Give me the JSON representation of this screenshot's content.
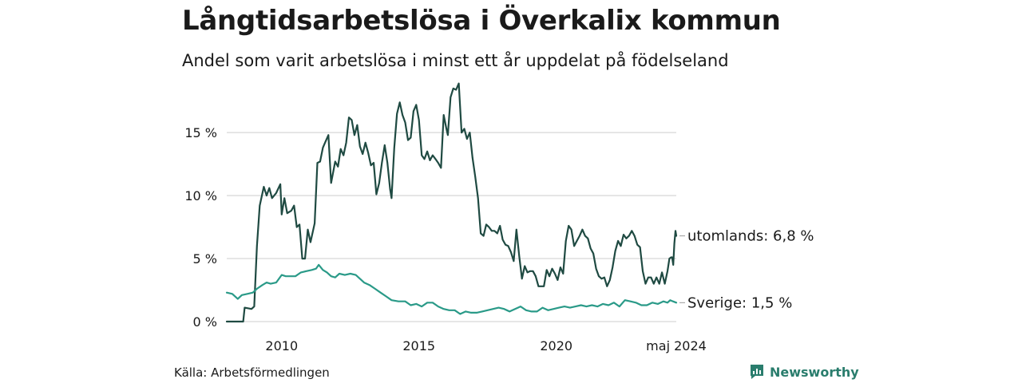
{
  "header": {
    "title": "Långtidsarbetslösa i Överkalix kommun",
    "subtitle": "Andel som varit arbetslösa i minst ett år uppdelat på födelseland"
  },
  "footer": {
    "source": "Källa: Arbetsförmedlingen",
    "brand": "Newsworthy"
  },
  "colors": {
    "utomlands": "#1f4a42",
    "sverige": "#2a9a88",
    "grid": "#dddddd",
    "brand": "#2a7d6d"
  },
  "chart_data": {
    "type": "line",
    "title": "Långtidsarbetslösa i Överkalix kommun",
    "xlabel": "",
    "ylabel": "",
    "ylim": [
      0,
      19
    ],
    "xlim": [
      2008.0,
      2024.37
    ],
    "grid": true,
    "yticks": [
      {
        "value": 0,
        "label": "0 %"
      },
      {
        "value": 5,
        "label": "5 %"
      },
      {
        "value": 10,
        "label": "10 %"
      },
      {
        "value": 15,
        "label": "15 %"
      }
    ],
    "xticks": [
      {
        "value": 2010.0,
        "label": "2010"
      },
      {
        "value": 2015.0,
        "label": "2015"
      },
      {
        "value": 2020.0,
        "label": "2020"
      },
      {
        "value": 2024.37,
        "label": "maj 2024"
      }
    ],
    "series": [
      {
        "name": "utomlands",
        "end_label": "utomlands: 6,8 %",
        "points": [
          [
            2008.0,
            0
          ],
          [
            2008.3,
            0
          ],
          [
            2008.6,
            0
          ],
          [
            2008.65,
            1.1
          ],
          [
            2008.9,
            1.0
          ],
          [
            2009.0,
            1.2
          ],
          [
            2009.1,
            6
          ],
          [
            2009.2,
            9.2
          ],
          [
            2009.35,
            10.7
          ],
          [
            2009.45,
            10.0
          ],
          [
            2009.55,
            10.6
          ],
          [
            2009.65,
            9.8
          ],
          [
            2009.8,
            10.2
          ],
          [
            2009.95,
            10.9
          ],
          [
            2010.0,
            8.5
          ],
          [
            2010.1,
            9.8
          ],
          [
            2010.2,
            8.6
          ],
          [
            2010.35,
            8.8
          ],
          [
            2010.45,
            9.2
          ],
          [
            2010.55,
            7.5
          ],
          [
            2010.65,
            7.7
          ],
          [
            2010.75,
            5.0
          ],
          [
            2010.85,
            5.0
          ],
          [
            2010.95,
            7.3
          ],
          [
            2011.05,
            6.3
          ],
          [
            2011.2,
            7.8
          ],
          [
            2011.3,
            12.6
          ],
          [
            2011.4,
            12.7
          ],
          [
            2011.5,
            13.8
          ],
          [
            2011.6,
            14.3
          ],
          [
            2011.7,
            14.8
          ],
          [
            2011.8,
            11.0
          ],
          [
            2011.95,
            12.7
          ],
          [
            2012.05,
            12.3
          ],
          [
            2012.15,
            13.7
          ],
          [
            2012.25,
            13.2
          ],
          [
            2012.35,
            14.2
          ],
          [
            2012.45,
            16.2
          ],
          [
            2012.55,
            16.0
          ],
          [
            2012.65,
            14.8
          ],
          [
            2012.75,
            15.6
          ],
          [
            2012.85,
            13.9
          ],
          [
            2012.95,
            13.3
          ],
          [
            2013.05,
            14.2
          ],
          [
            2013.15,
            13.4
          ],
          [
            2013.25,
            12.4
          ],
          [
            2013.35,
            12.6
          ],
          [
            2013.45,
            10.1
          ],
          [
            2013.55,
            11.0
          ],
          [
            2013.65,
            12.6
          ],
          [
            2013.75,
            14.0
          ],
          [
            2013.85,
            12.6
          ],
          [
            2013.95,
            10.5
          ],
          [
            2014.0,
            9.8
          ],
          [
            2014.1,
            13.8
          ],
          [
            2014.2,
            16.5
          ],
          [
            2014.3,
            17.4
          ],
          [
            2014.4,
            16.4
          ],
          [
            2014.5,
            15.8
          ],
          [
            2014.6,
            14.4
          ],
          [
            2014.7,
            14.6
          ],
          [
            2014.8,
            16.7
          ],
          [
            2014.9,
            17.2
          ],
          [
            2015.0,
            16.0
          ],
          [
            2015.1,
            13.2
          ],
          [
            2015.2,
            12.9
          ],
          [
            2015.3,
            13.5
          ],
          [
            2015.4,
            12.8
          ],
          [
            2015.5,
            13.2
          ],
          [
            2015.6,
            12.9
          ],
          [
            2015.7,
            12.6
          ],
          [
            2015.8,
            12.2
          ],
          [
            2015.9,
            16.4
          ],
          [
            2016.0,
            15.3
          ],
          [
            2016.05,
            14.8
          ],
          [
            2016.15,
            17.8
          ],
          [
            2016.25,
            18.5
          ],
          [
            2016.35,
            18.4
          ],
          [
            2016.45,
            18.9
          ],
          [
            2016.55,
            15.0
          ],
          [
            2016.65,
            15.3
          ],
          [
            2016.75,
            14.5
          ],
          [
            2016.85,
            15.0
          ],
          [
            2016.95,
            13.0
          ],
          [
            2017.05,
            11.5
          ],
          [
            2017.15,
            9.8
          ],
          [
            2017.25,
            7.0
          ],
          [
            2017.35,
            6.8
          ],
          [
            2017.45,
            7.7
          ],
          [
            2017.55,
            7.5
          ],
          [
            2017.65,
            7.2
          ],
          [
            2017.75,
            7.2
          ],
          [
            2017.85,
            7.0
          ],
          [
            2017.95,
            7.6
          ],
          [
            2018.05,
            6.5
          ],
          [
            2018.15,
            6.1
          ],
          [
            2018.25,
            6.0
          ],
          [
            2018.35,
            5.5
          ],
          [
            2018.45,
            4.8
          ],
          [
            2018.55,
            7.3
          ],
          [
            2018.65,
            5.2
          ],
          [
            2018.75,
            3.4
          ],
          [
            2018.85,
            4.4
          ],
          [
            2018.95,
            3.9
          ],
          [
            2019.05,
            4.0
          ],
          [
            2019.15,
            4.0
          ],
          [
            2019.25,
            3.6
          ],
          [
            2019.35,
            2.8
          ],
          [
            2019.45,
            2.8
          ],
          [
            2019.55,
            2.8
          ],
          [
            2019.65,
            4.1
          ],
          [
            2019.75,
            3.6
          ],
          [
            2019.85,
            4.2
          ],
          [
            2019.95,
            3.8
          ],
          [
            2020.05,
            3.3
          ],
          [
            2020.15,
            4.3
          ],
          [
            2020.25,
            3.8
          ],
          [
            2020.35,
            6.4
          ],
          [
            2020.45,
            7.6
          ],
          [
            2020.55,
            7.3
          ],
          [
            2020.65,
            6.0
          ],
          [
            2020.75,
            6.4
          ],
          [
            2020.85,
            6.8
          ],
          [
            2020.95,
            7.3
          ],
          [
            2021.05,
            6.8
          ],
          [
            2021.15,
            6.6
          ],
          [
            2021.25,
            5.8
          ],
          [
            2021.35,
            5.4
          ],
          [
            2021.45,
            4.2
          ],
          [
            2021.55,
            3.6
          ],
          [
            2021.65,
            3.4
          ],
          [
            2021.75,
            3.5
          ],
          [
            2021.85,
            2.8
          ],
          [
            2021.95,
            3.3
          ],
          [
            2022.05,
            4.3
          ],
          [
            2022.15,
            5.6
          ],
          [
            2022.25,
            6.4
          ],
          [
            2022.35,
            6.0
          ],
          [
            2022.45,
            6.9
          ],
          [
            2022.55,
            6.6
          ],
          [
            2022.65,
            6.8
          ],
          [
            2022.75,
            7.2
          ],
          [
            2022.85,
            6.8
          ],
          [
            2022.95,
            6.1
          ],
          [
            2023.05,
            5.9
          ],
          [
            2023.15,
            4.0
          ],
          [
            2023.25,
            3.0
          ],
          [
            2023.35,
            3.5
          ],
          [
            2023.45,
            3.5
          ],
          [
            2023.55,
            3.0
          ],
          [
            2023.65,
            3.5
          ],
          [
            2023.75,
            3.0
          ],
          [
            2023.85,
            3.9
          ],
          [
            2023.95,
            3.0
          ],
          [
            2024.05,
            4.0
          ],
          [
            2024.12,
            5.0
          ],
          [
            2024.18,
            5.1
          ],
          [
            2024.22,
            5.1
          ],
          [
            2024.26,
            4.5
          ],
          [
            2024.3,
            6.2
          ],
          [
            2024.34,
            7.2
          ],
          [
            2024.37,
            6.8
          ]
        ]
      },
      {
        "name": "Sverige",
        "end_label": "Sverige: 1,5 %",
        "points": [
          [
            2008.0,
            2.3
          ],
          [
            2008.2,
            2.2
          ],
          [
            2008.4,
            1.8
          ],
          [
            2008.55,
            2.1
          ],
          [
            2008.75,
            2.2
          ],
          [
            2008.95,
            2.3
          ],
          [
            2009.1,
            2.6
          ],
          [
            2009.3,
            2.9
          ],
          [
            2009.45,
            3.1
          ],
          [
            2009.6,
            3.0
          ],
          [
            2009.8,
            3.1
          ],
          [
            2010.0,
            3.7
          ],
          [
            2010.15,
            3.6
          ],
          [
            2010.3,
            3.6
          ],
          [
            2010.5,
            3.6
          ],
          [
            2010.7,
            3.9
          ],
          [
            2010.9,
            4.0
          ],
          [
            2011.1,
            4.1
          ],
          [
            2011.25,
            4.2
          ],
          [
            2011.35,
            4.5
          ],
          [
            2011.5,
            4.1
          ],
          [
            2011.65,
            3.9
          ],
          [
            2011.8,
            3.6
          ],
          [
            2011.95,
            3.5
          ],
          [
            2012.1,
            3.8
          ],
          [
            2012.3,
            3.7
          ],
          [
            2012.5,
            3.8
          ],
          [
            2012.7,
            3.7
          ],
          [
            2012.85,
            3.4
          ],
          [
            2013.0,
            3.1
          ],
          [
            2013.2,
            2.9
          ],
          [
            2013.4,
            2.6
          ],
          [
            2013.6,
            2.3
          ],
          [
            2013.8,
            2.0
          ],
          [
            2014.0,
            1.7
          ],
          [
            2014.25,
            1.6
          ],
          [
            2014.5,
            1.6
          ],
          [
            2014.7,
            1.3
          ],
          [
            2014.9,
            1.4
          ],
          [
            2015.1,
            1.2
          ],
          [
            2015.3,
            1.5
          ],
          [
            2015.5,
            1.5
          ],
          [
            2015.7,
            1.2
          ],
          [
            2015.9,
            1.0
          ],
          [
            2016.1,
            0.9
          ],
          [
            2016.3,
            0.9
          ],
          [
            2016.5,
            0.6
          ],
          [
            2016.7,
            0.8
          ],
          [
            2016.9,
            0.7
          ],
          [
            2017.1,
            0.7
          ],
          [
            2017.3,
            0.8
          ],
          [
            2017.5,
            0.9
          ],
          [
            2017.7,
            1.0
          ],
          [
            2017.9,
            1.1
          ],
          [
            2018.1,
            1.0
          ],
          [
            2018.3,
            0.8
          ],
          [
            2018.5,
            1.0
          ],
          [
            2018.7,
            1.2
          ],
          [
            2018.9,
            0.9
          ],
          [
            2019.1,
            0.8
          ],
          [
            2019.3,
            0.8
          ],
          [
            2019.5,
            1.1
          ],
          [
            2019.7,
            0.9
          ],
          [
            2019.9,
            1.0
          ],
          [
            2020.1,
            1.1
          ],
          [
            2020.3,
            1.2
          ],
          [
            2020.5,
            1.1
          ],
          [
            2020.7,
            1.2
          ],
          [
            2020.9,
            1.3
          ],
          [
            2021.1,
            1.2
          ],
          [
            2021.3,
            1.3
          ],
          [
            2021.5,
            1.2
          ],
          [
            2021.7,
            1.4
          ],
          [
            2021.9,
            1.3
          ],
          [
            2022.1,
            1.5
          ],
          [
            2022.3,
            1.2
          ],
          [
            2022.5,
            1.7
          ],
          [
            2022.7,
            1.6
          ],
          [
            2022.9,
            1.5
          ],
          [
            2023.1,
            1.3
          ],
          [
            2023.3,
            1.3
          ],
          [
            2023.5,
            1.5
          ],
          [
            2023.7,
            1.4
          ],
          [
            2023.9,
            1.6
          ],
          [
            2024.05,
            1.5
          ],
          [
            2024.15,
            1.7
          ],
          [
            2024.25,
            1.6
          ],
          [
            2024.37,
            1.5
          ]
        ]
      }
    ]
  }
}
